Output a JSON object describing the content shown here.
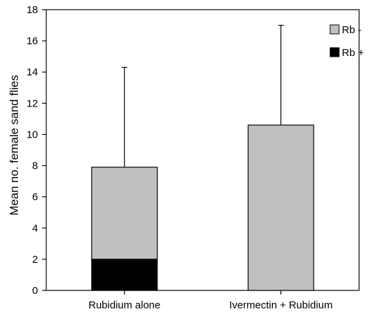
{
  "chart_data": {
    "type": "bar",
    "stacked": true,
    "title": "",
    "xlabel": "",
    "ylabel": "Mean no. female sand flies",
    "ylim": [
      0,
      18
    ],
    "yticks": [
      0,
      2,
      4,
      6,
      8,
      10,
      12,
      14,
      16,
      18
    ],
    "categories": [
      "Rubidium alone",
      "Ivermectin + Rubidium"
    ],
    "series": [
      {
        "name": "Rb +",
        "values": [
          2.0,
          0.0
        ],
        "color": "#000000"
      },
      {
        "name": "Rb -",
        "values": [
          5.9,
          10.6
        ],
        "color": "#c0c0c0"
      }
    ],
    "totals": [
      7.9,
      10.6
    ],
    "error_upper": [
      14.3,
      17.0
    ],
    "grid": false,
    "legend": {
      "position": "top-right",
      "entries": [
        {
          "label": "Rb -",
          "color": "#c0c0c0"
        },
        {
          "label": "Rb +",
          "color": "#000000"
        }
      ]
    }
  }
}
